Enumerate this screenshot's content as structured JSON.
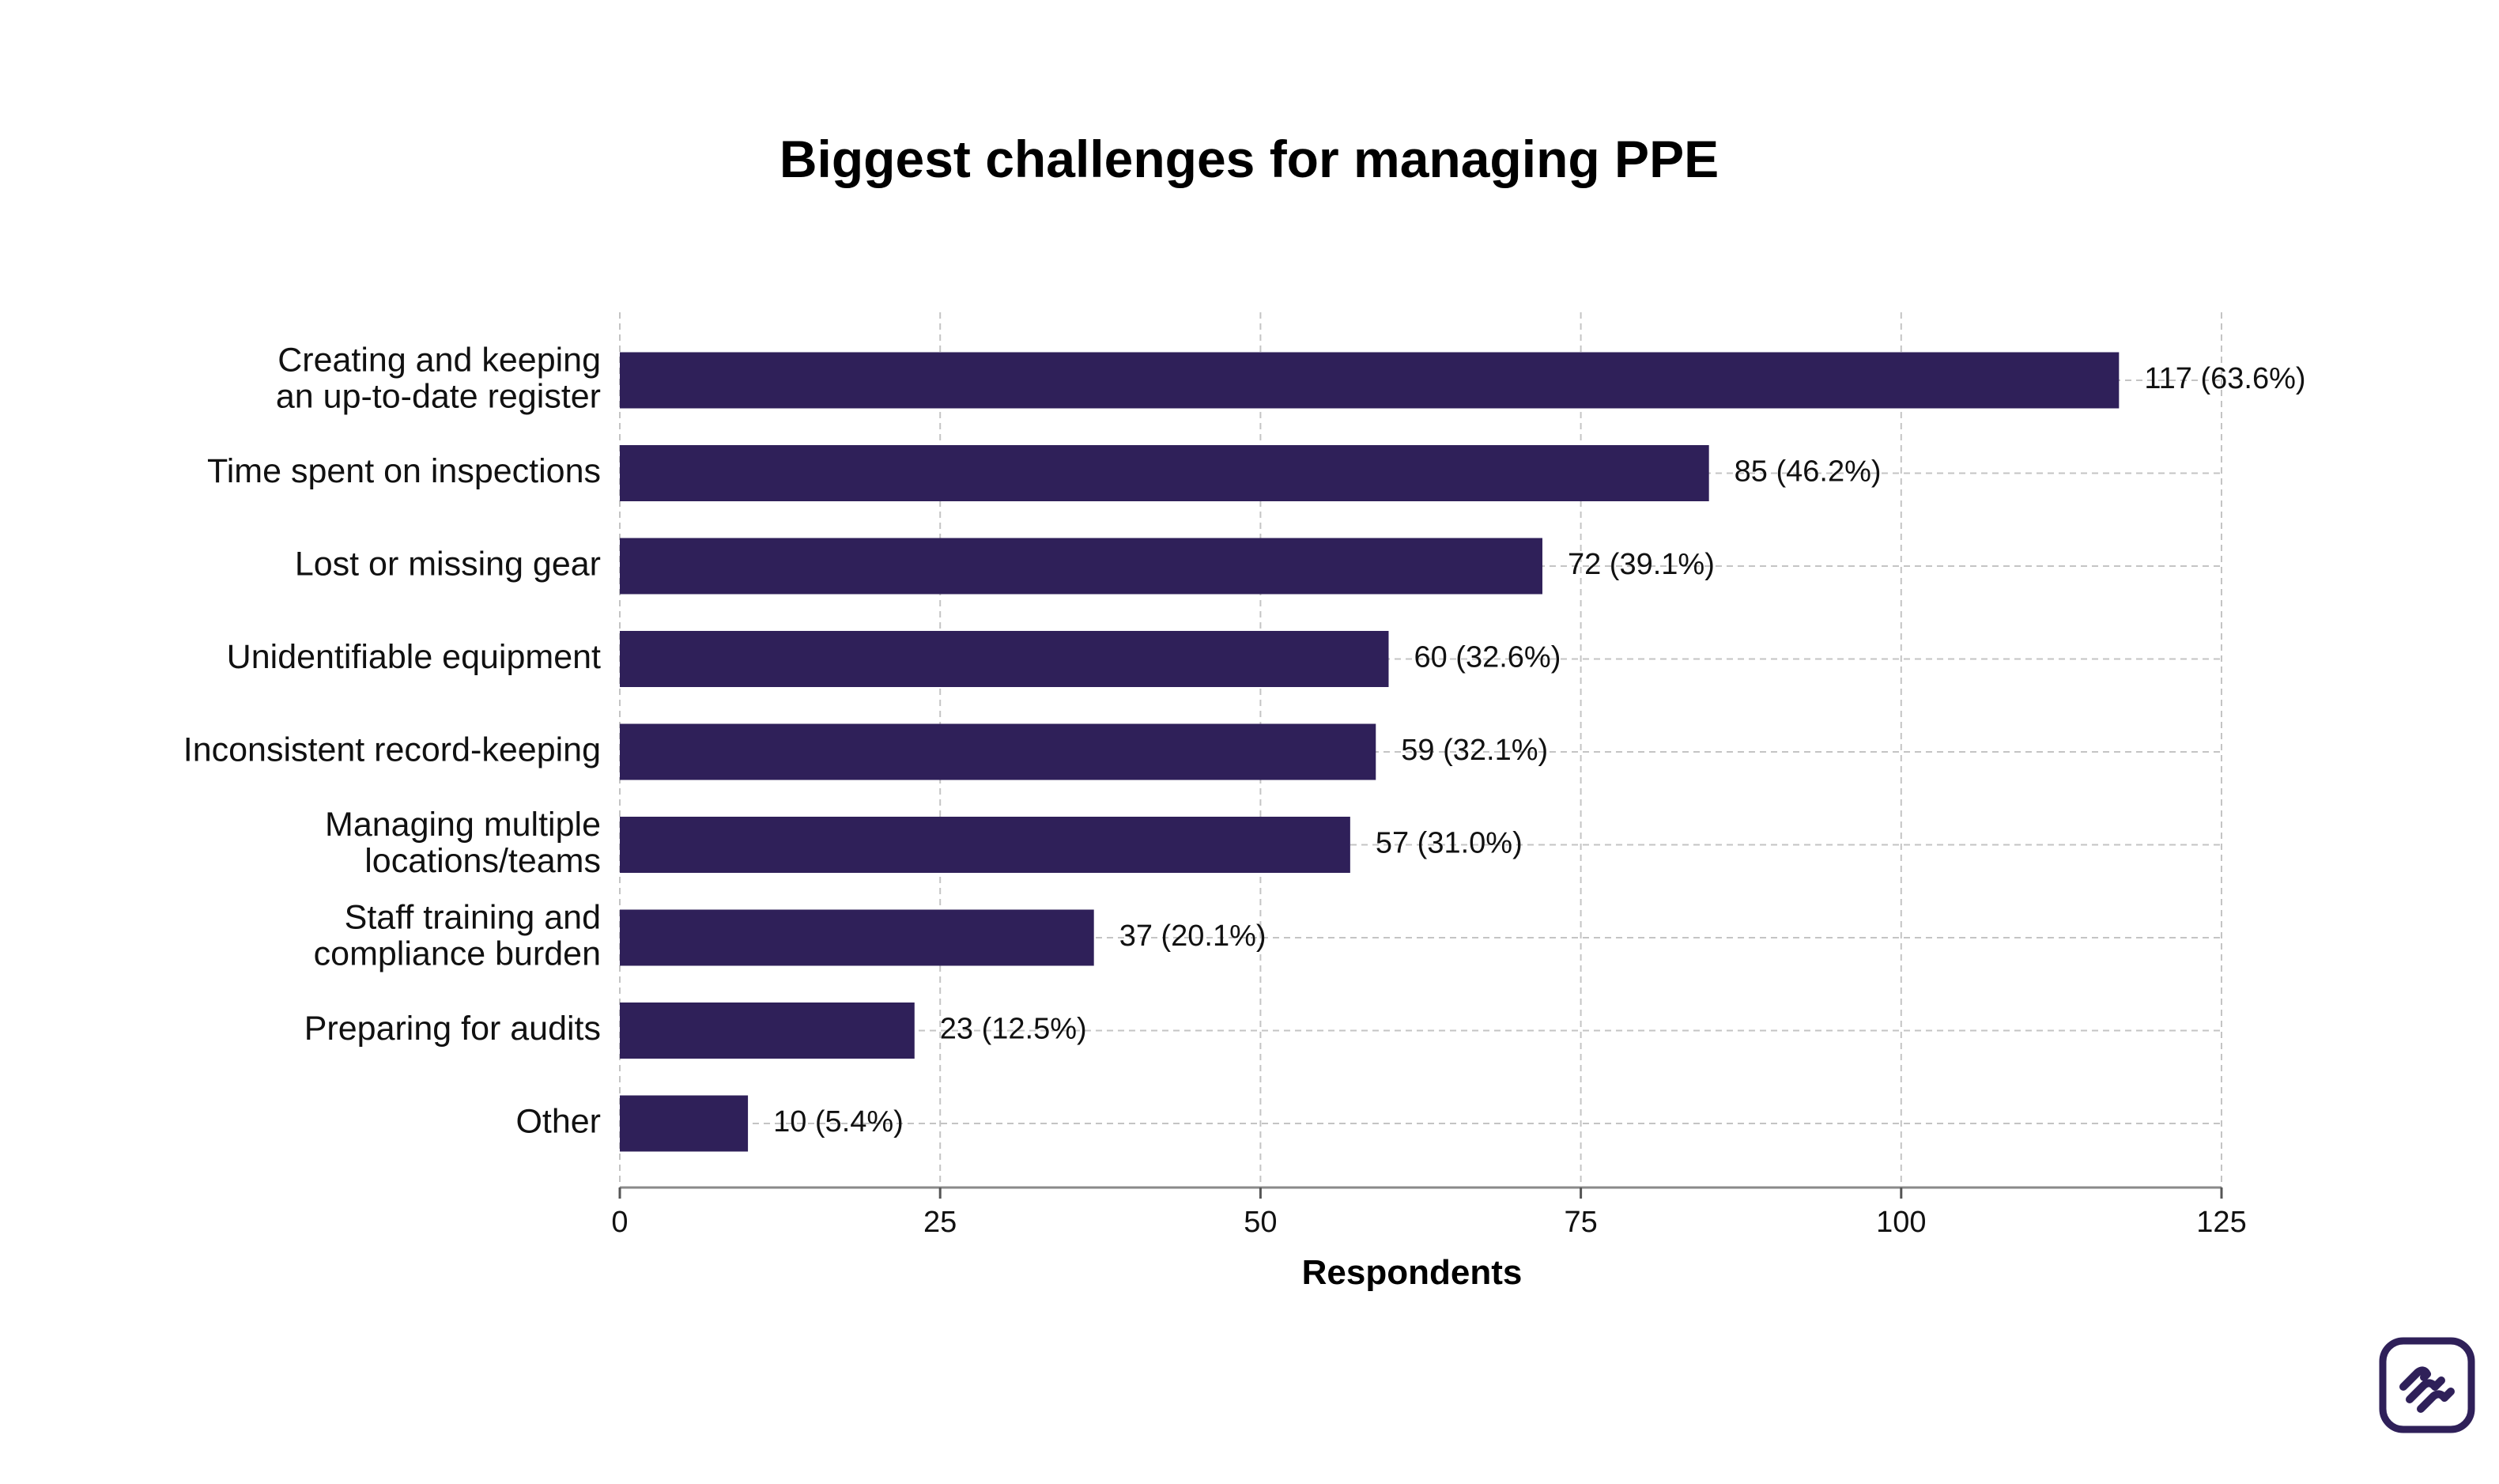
{
  "chart_data": {
    "type": "bar",
    "orientation": "horizontal",
    "title": "Biggest challenges for managing PPE",
    "xlabel": "Respondents",
    "ylabel": "",
    "xlim": [
      0,
      125
    ],
    "xticks": [
      0,
      25,
      50,
      75,
      100,
      125
    ],
    "grid": true,
    "legend": "none",
    "bar_color": "#2f2059",
    "categories": [
      [
        "Creating and keeping",
        "an up-to-date register"
      ],
      [
        "Time spent on inspections"
      ],
      [
        "Lost or missing gear"
      ],
      [
        "Unidentifiable equipment"
      ],
      [
        "Inconsistent record-keeping"
      ],
      [
        "Managing multiple",
        "locations/teams"
      ],
      [
        "Staff training and",
        "compliance burden"
      ],
      [
        "Preparing for audits"
      ],
      [
        "Other"
      ]
    ],
    "values": [
      117,
      85,
      72,
      60,
      59,
      57,
      37,
      23,
      10
    ],
    "data_labels": [
      "117 (63.6%)",
      "85 (46.2%)",
      "72 (39.1%)",
      "60 (32.6%)",
      "59 (32.1%)",
      "57 (31.0%)",
      "37 (20.1%)",
      "23 (12.5%)",
      "10 (5.4%)"
    ]
  },
  "logo": {
    "icon": "brand-waves-logo-icon",
    "color": "#2f2059"
  }
}
